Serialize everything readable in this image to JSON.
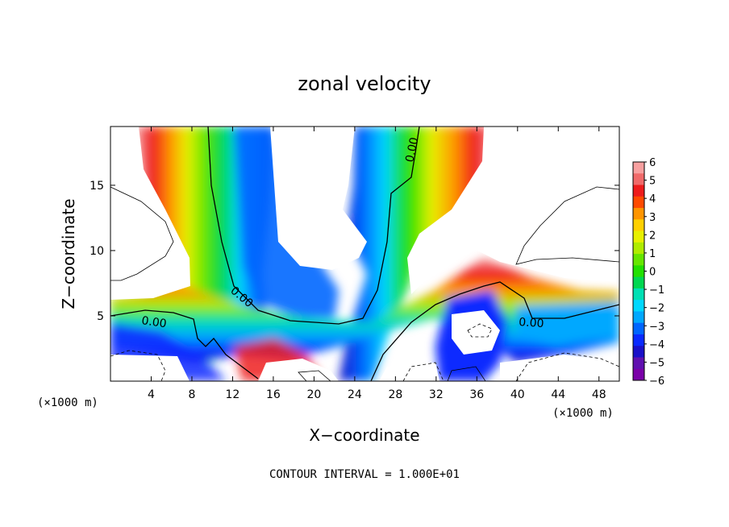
{
  "chart_data": {
    "type": "heatmap",
    "title": "zonal velocity",
    "xlabel": "X−coordinate",
    "ylabel": "Z−coordinate",
    "x_unit_left": "(×1000 m)",
    "x_unit_right": "(×1000 m)",
    "note": "CONTOUR INTERVAL = 1.000E+01",
    "xlim": [
      0,
      50
    ],
    "ylim": [
      0,
      19.5
    ],
    "xticks": [
      4,
      8,
      12,
      16,
      20,
      24,
      28,
      32,
      36,
      40,
      44,
      48
    ],
    "yticks": [
      5,
      10,
      15
    ],
    "colorbar": {
      "ticks": [
        6,
        5,
        4,
        3,
        2,
        1,
        0,
        -1,
        -2,
        -3,
        -4,
        -5,
        -6
      ],
      "colors": [
        "#f7a0a0",
        "#f06a6a",
        "#ee1c1c",
        "#ff4a00",
        "#ff9500",
        "#ffd000",
        "#e8f000",
        "#b0ec00",
        "#66e600",
        "#22e000",
        "#00d750",
        "#00e0b4",
        "#00d8ff",
        "#00a8ff",
        "#0066ff",
        "#0a2aff",
        "#1a10c8",
        "#6010b0",
        "#7a00a8"
      ]
    },
    "contour_labels": [
      "0.00",
      "0.00",
      "0.00",
      "0.00"
    ]
  }
}
